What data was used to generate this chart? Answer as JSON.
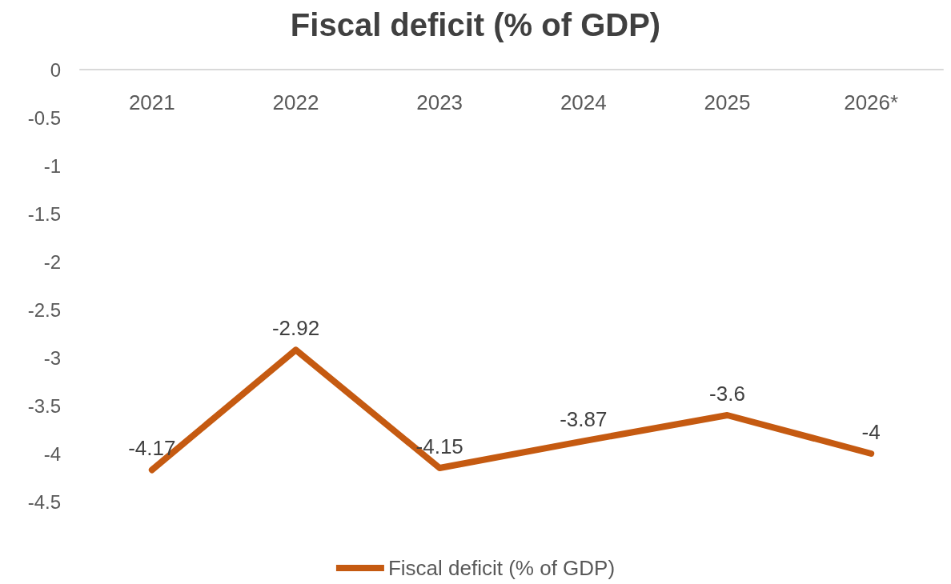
{
  "chart_data": {
    "type": "line",
    "title": "Fiscal deficit (% of GDP)",
    "categories": [
      "2021",
      "2022",
      "2023",
      "2024",
      "2025",
      "2026*"
    ],
    "series": [
      {
        "name": "Fiscal deficit (% of GDP)",
        "color": "#c55a11",
        "values": [
          -4.17,
          -2.92,
          -4.15,
          -3.87,
          -3.6,
          -4
        ]
      }
    ],
    "ylim": [
      -4.5,
      0
    ],
    "yticks": [
      0,
      -0.5,
      -1,
      -1.5,
      -2,
      -2.5,
      -3,
      -3.5,
      -4,
      -4.5
    ],
    "grid": false,
    "legend": "bottom",
    "data_labels": true,
    "line_style": "solid"
  }
}
